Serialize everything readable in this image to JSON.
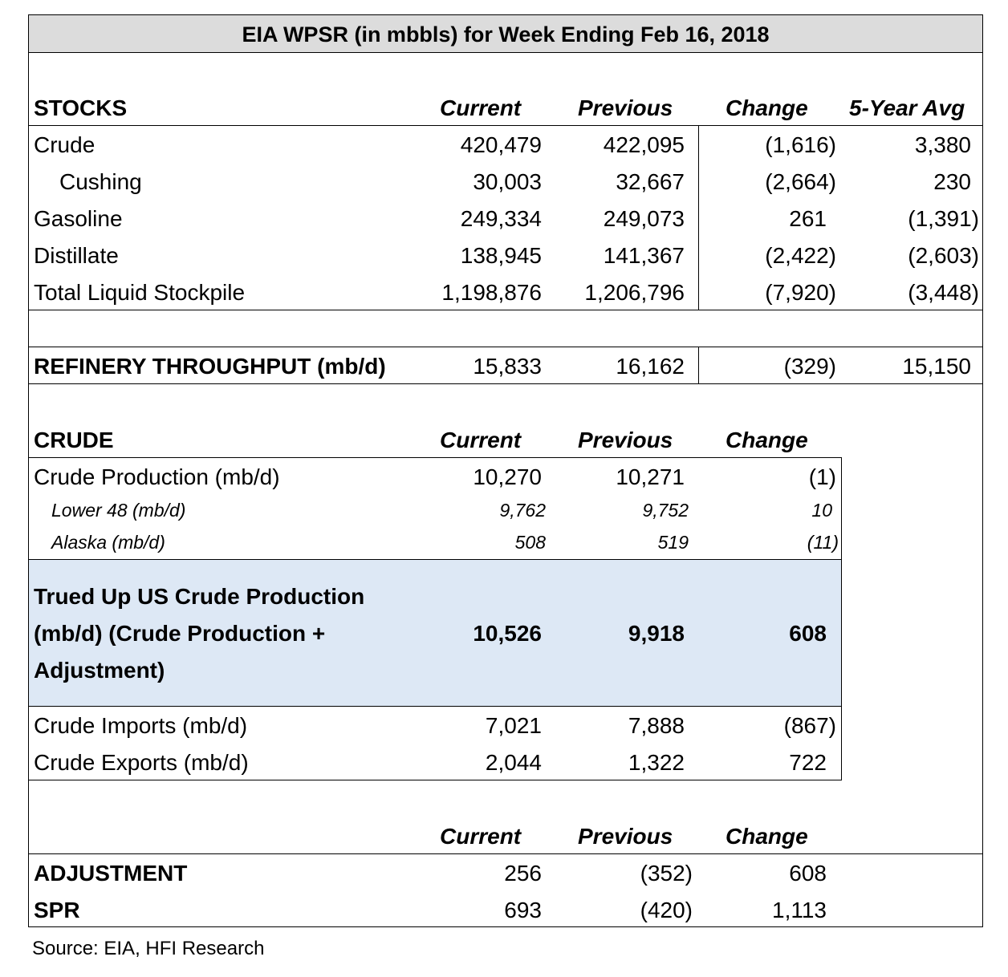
{
  "title": "EIA WPSR (in mbbls) for Week Ending Feb 16, 2018",
  "stocks": {
    "heading": "STOCKS",
    "columns": [
      "Current",
      "Previous",
      "Change",
      "5-Year Avg"
    ],
    "rows": [
      {
        "label": "Crude",
        "current": "420,479",
        "previous": "422,095",
        "change": "(1,616)",
        "avg": "3,380"
      },
      {
        "label": "Cushing",
        "current": "30,003",
        "previous": "32,667",
        "change": "(2,664)",
        "avg": "230"
      },
      {
        "label": "Gasoline",
        "current": "249,334",
        "previous": "249,073",
        "change": "261",
        "avg": "(1,391)"
      },
      {
        "label": "Distillate",
        "current": "138,945",
        "previous": "141,367",
        "change": "(2,422)",
        "avg": "(2,603)"
      },
      {
        "label": "Total Liquid Stockpile",
        "current": "1,198,876",
        "previous": "1,206,796",
        "change": "(7,920)",
        "avg": "(3,448)"
      }
    ]
  },
  "refinery": {
    "label": "REFINERY THROUGHPUT (mb/d)",
    "current": "15,833",
    "previous": "16,162",
    "change": "(329)",
    "avg": "15,150"
  },
  "crude": {
    "heading": "CRUDE",
    "columns": [
      "Current",
      "Previous",
      "Change"
    ],
    "production": {
      "label": "Crude Production (mb/d)",
      "current": "10,270",
      "previous": "10,271",
      "change": "(1)"
    },
    "lower48": {
      "label": "Lower 48 (mb/d)",
      "current": "9,762",
      "previous": "9,752",
      "change": "10"
    },
    "alaska": {
      "label": "Alaska (mb/d)",
      "current": "508",
      "previous": "519",
      "change": "(11)"
    },
    "trued": {
      "label_lines": [
        "Trued Up US Crude Production",
        "(mb/d) (Crude Production +",
        "Adjustment)"
      ],
      "current": "10,526",
      "previous": "9,918",
      "change": "608"
    },
    "imports": {
      "label": "Crude Imports (mb/d)",
      "current": "7,021",
      "previous": "7,888",
      "change": "(867)"
    },
    "exports": {
      "label": "Crude Exports (mb/d)",
      "current": "2,044",
      "previous": "1,322",
      "change": "722"
    }
  },
  "adjustments": {
    "columns": [
      "Current",
      "Previous",
      "Change"
    ],
    "rows": [
      {
        "label": "ADJUSTMENT",
        "current": "256",
        "previous": "(352)",
        "change": "608"
      },
      {
        "label": "SPR",
        "current": "693",
        "previous": "(420)",
        "change": "1,113"
      }
    ]
  },
  "source": "Source: EIA, HFI Research",
  "colors": {
    "title_bg": "#dcdcdc",
    "highlight_bg": "#dde8f5"
  }
}
